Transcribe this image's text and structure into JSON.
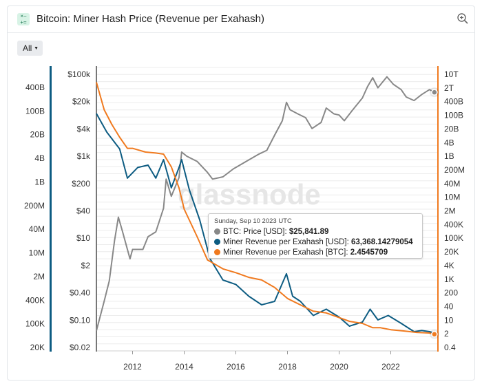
{
  "header": {
    "title": "Bitcoin: Miner Hash Price (Revenue per Exahash)",
    "icon": "calculator-icon",
    "zoom_icon": "zoom-in-icon"
  },
  "controls": {
    "range_label": "All"
  },
  "watermark": "glassnode",
  "colors": {
    "price": "#888888",
    "usd": "#0d5c82",
    "btc": "#f07a1f"
  },
  "tooltip": {
    "date": "Sunday, Sep 10 2023 UTC",
    "rows": [
      {
        "label": "BTC: Price [USD]:",
        "value": "$25,841.89",
        "color": "#888888"
      },
      {
        "label": "Miner Revenue per Exahash [USD]:",
        "value": "63,368.14279054",
        "color": "#0d5c82"
      },
      {
        "label": "Miner Revenue per Exahash [BTC]:",
        "value": "2.4545709",
        "color": "#f07a1f"
      }
    ]
  },
  "chart_data": {
    "type": "line",
    "title": "Bitcoin: Miner Hash Price (Revenue per Exahash)",
    "x_range": [
      2010.6,
      2023.8
    ],
    "x_ticks": [
      "2012",
      "2014",
      "2016",
      "2018",
      "2020",
      "2022"
    ],
    "y_axes": {
      "left_outer": {
        "scale": "log",
        "range": [
          20000,
          2000000000000
        ],
        "ticks": [
          "400B",
          "100B",
          "20B",
          "4B",
          "1B",
          "200M",
          "40M",
          "10M",
          "2M",
          "400K",
          "100K",
          "20K"
        ]
      },
      "left_inner": {
        "scale": "log",
        "range": [
          0.02,
          100000
        ],
        "ticks": [
          "$100k",
          "$20k",
          "$4k",
          "$1k",
          "$200",
          "$40",
          "$10",
          "$2",
          "$0.40",
          "$0.10",
          "$0.02"
        ]
      },
      "right": {
        "scale": "log",
        "range": [
          0.4,
          10000000000000
        ],
        "ticks": [
          "10T",
          "2T",
          "400B",
          "100B",
          "20B",
          "4B",
          "1B",
          "200M",
          "40M",
          "10M",
          "2M",
          "400K",
          "100K",
          "20K",
          "4K",
          "1K",
          "200",
          "40",
          "10",
          "2",
          "0.4"
        ]
      }
    },
    "grid": true,
    "series": [
      {
        "name": "BTC: Price [USD]",
        "axis": "left_inner",
        "x": [
          2010.6,
          2010.9,
          2011.1,
          2011.3,
          2011.45,
          2011.6,
          2011.9,
          2012.0,
          2012.4,
          2012.6,
          2012.9,
          2013.2,
          2013.3,
          2013.5,
          2013.8,
          2013.9,
          2014.1,
          2014.5,
          2014.9,
          2015.1,
          2015.5,
          2015.9,
          2016.4,
          2016.9,
          2017.2,
          2017.5,
          2017.8,
          2017.96,
          2018.1,
          2018.4,
          2018.7,
          2018.95,
          2019.3,
          2019.5,
          2019.8,
          2020.0,
          2020.2,
          2020.5,
          2020.9,
          2021.1,
          2021.3,
          2021.5,
          2021.85,
          2022.1,
          2022.4,
          2022.6,
          2022.9,
          2023.2,
          2023.5,
          2023.69
        ],
        "y": [
          0.06,
          0.3,
          0.9,
          8,
          29,
          14,
          3,
          5,
          5,
          10,
          13,
          47,
          230,
          90,
          250,
          1000,
          800,
          600,
          330,
          230,
          260,
          400,
          600,
          900,
          1100,
          2500,
          5500,
          15000,
          10000,
          8000,
          6500,
          3600,
          5000,
          11000,
          8000,
          7500,
          5500,
          9500,
          19000,
          35000,
          57000,
          33000,
          60000,
          40000,
          30000,
          20000,
          16500,
          23000,
          30000,
          25841.89
        ]
      },
      {
        "name": "Miner Revenue per Exahash [USD]",
        "axis": "left_outer",
        "x": [
          2010.6,
          2011.0,
          2011.5,
          2011.8,
          2012.2,
          2012.6,
          2012.9,
          2013.2,
          2013.5,
          2013.8,
          2013.9,
          2014.2,
          2014.6,
          2015.0,
          2015.5,
          2016.0,
          2016.5,
          2017.0,
          2017.5,
          2017.96,
          2018.2,
          2018.5,
          2019.0,
          2019.5,
          2020.0,
          2020.4,
          2020.9,
          2021.2,
          2021.5,
          2021.9,
          2022.4,
          2022.9,
          2023.2,
          2023.5,
          2023.69
        ],
        "y": [
          100000000000,
          30000000000,
          10000000000,
          1500000000,
          3000000000,
          3500000000,
          1500000000,
          5000000000,
          800000000,
          3000000000,
          5000000000,
          700000000,
          100000000,
          8000000,
          2000000,
          1500000,
          700000,
          400000,
          500000,
          3000000,
          700000,
          500000,
          200000,
          300000,
          180000,
          100000,
          130000,
          300000,
          150000,
          200000,
          120000,
          70000,
          75000,
          70000,
          63368.14279054
        ]
      },
      {
        "name": "Miner Revenue per Exahash [BTC]",
        "axis": "right",
        "x": [
          2010.6,
          2010.9,
          2011.2,
          2011.5,
          2011.8,
          2012.0,
          2012.5,
          2012.9,
          2013.2,
          2013.5,
          2013.8,
          2014.0,
          2014.5,
          2014.9,
          2015.5,
          2016.0,
          2016.5,
          2017.0,
          2017.5,
          2018.0,
          2018.5,
          2019.0,
          2019.5,
          2020.0,
          2020.4,
          2020.9,
          2021.3,
          2021.6,
          2022.0,
          2022.5,
          2023.0,
          2023.5,
          2023.69
        ],
        "y": [
          2000000000000,
          100000000000,
          20000000000,
          5000000000,
          1500000000,
          1500000000,
          1000000000,
          900000000,
          800000000,
          200000000,
          20000000,
          2000000,
          100000,
          8000,
          3000,
          2000,
          1200,
          900,
          400,
          120,
          60,
          30,
          25,
          15,
          10,
          8,
          5,
          5,
          4,
          3.5,
          3,
          2.8,
          2.4545709
        ]
      }
    ],
    "highlight_x": 2023.69
  }
}
